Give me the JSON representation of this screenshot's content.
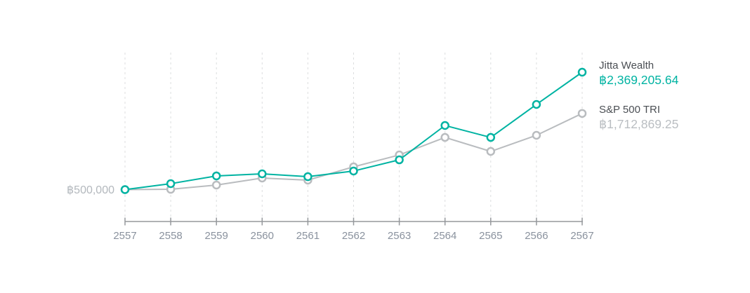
{
  "chart_data": {
    "type": "line",
    "title": "",
    "xlabel": "",
    "ylabel": "",
    "x_categories": [
      "2557",
      "2558",
      "2559",
      "2560",
      "2561",
      "2562",
      "2563",
      "2564",
      "2565",
      "2566",
      "2567"
    ],
    "series": [
      {
        "id": "jitta-wealth",
        "name": "Jitta Wealth",
        "color": "#00b3a2",
        "values": [
          500000,
          595000,
          718000,
          751000,
          706000,
          796000,
          974000,
          1521000,
          1331000,
          1856000,
          2369205.64
        ]
      },
      {
        "id": "sp500-tri",
        "name": "S&P 500 TRI",
        "color": "#b9bcbf",
        "values": [
          500000,
          505000,
          573000,
          684000,
          651000,
          863000,
          1052000,
          1331000,
          1108000,
          1365000,
          1712869.25
        ]
      }
    ],
    "baseline": {
      "label": "฿500,000",
      "value": 500000
    },
    "ylim": [
      500000,
      2369205.64
    ],
    "grid": {
      "vertical_dashed": true,
      "horizontal": false,
      "color": "#dcdedf"
    },
    "axis": {
      "color": "#95989c",
      "tick_label_color": "#8a929e"
    },
    "legend_position": "right",
    "marker": "open-circle"
  },
  "legend": {
    "items": [
      {
        "name": "Jitta Wealth",
        "value": "฿2,369,205.64",
        "name_color": "#4b4f54",
        "value_color": "#00b3a2"
      },
      {
        "name": "S&P 500 TRI",
        "value": "฿1,712,869.25",
        "name_color": "#4b4f54",
        "value_color": "#babec2"
      }
    ]
  }
}
